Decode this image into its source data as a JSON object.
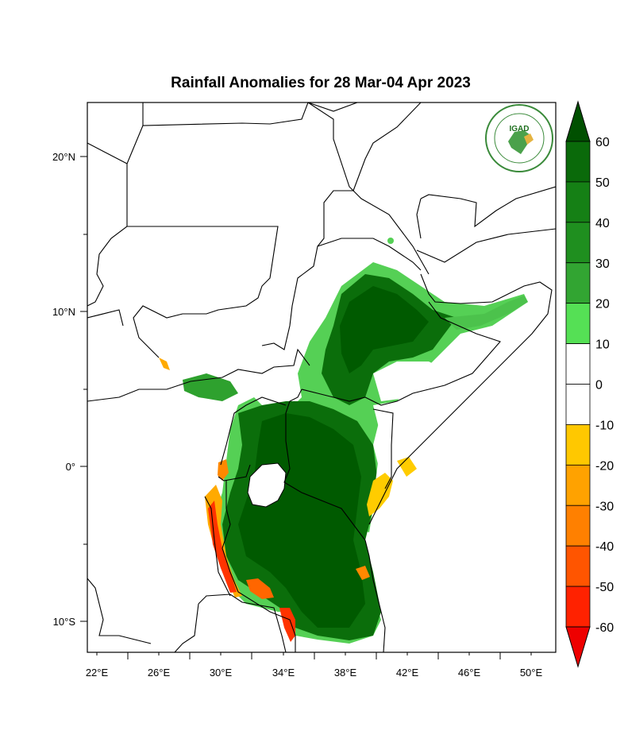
{
  "title": "Rainfall Anomalies for 28 Mar-04 Apr 2023",
  "logo_text": "IGAD",
  "lon_ticks": [
    "22°E",
    "26°E",
    "30°E",
    "34°E",
    "38°E",
    "42°E",
    "46°E",
    "50°E"
  ],
  "lat_ticks": [
    "20°N",
    "10°N",
    "0°",
    "10°S"
  ],
  "colorbar": {
    "labels": [
      "60",
      "50",
      "40",
      "30",
      "20",
      "10",
      "0",
      "-10",
      "-20",
      "-30",
      "-40",
      "-50",
      "-60"
    ],
    "colors": [
      "#005a00",
      "#0a7a0a",
      "#198c19",
      "#2ea12e",
      "#4cc24c",
      "#55ea55",
      "#ffffff",
      "#ffffff",
      "#ffcc00",
      "#ffaa00",
      "#ff8800",
      "#ff6600",
      "#ff3300",
      "#ff0000",
      "#ee0000"
    ]
  },
  "legend_colors": {
    "top_arrow": "#005000",
    "bottom_arrow": "#ee0000"
  }
}
